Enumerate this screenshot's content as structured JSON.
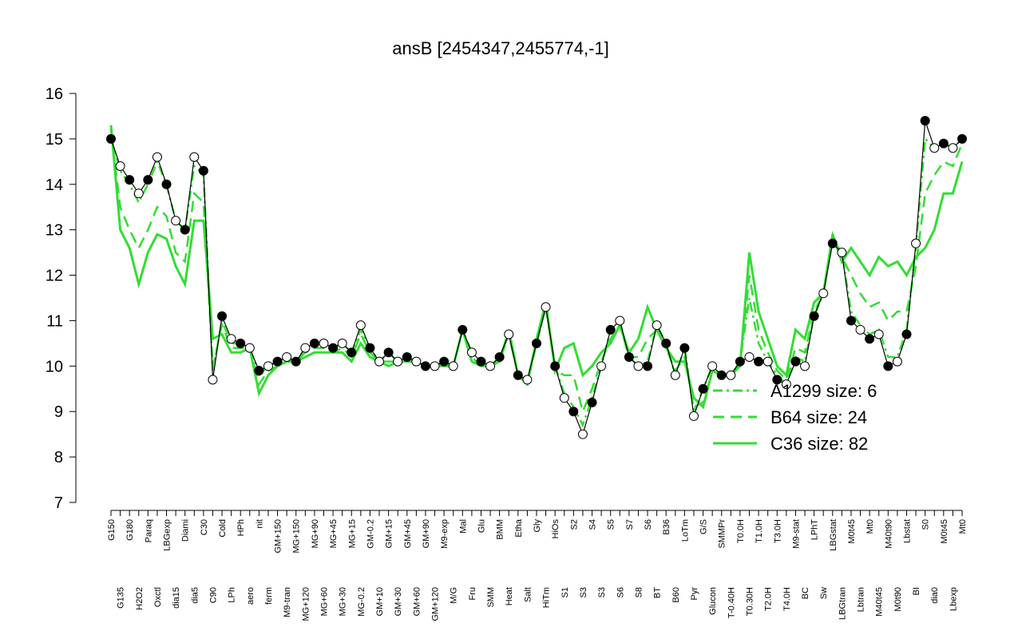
{
  "chart_data": {
    "type": "line",
    "title": "ansB [2454347,2455774,-1]",
    "categories": [
      "G150",
      "G135",
      "G180",
      "H2O2",
      "Paraq",
      "Oxctl",
      "LBGexp",
      "dia15",
      "Diami",
      "dia5",
      "C30",
      "C90",
      "Cold",
      "LPh",
      "HPh",
      "aero",
      "nit",
      "ferm",
      "GM+150",
      "M9-tran",
      "MG+150",
      "MG+120",
      "MG+90",
      "MG+60",
      "MG+45",
      "MG+30",
      "MG+15",
      "MG-0.2",
      "GM-0.2",
      "GM+10",
      "GM+15",
      "GM+30",
      "GM+45",
      "GM+60",
      "GM+90",
      "GM+120",
      "M9-exp",
      "M/G",
      "Mal",
      "Fru",
      "Glu",
      "SMM",
      "BMM",
      "Heat",
      "Etha",
      "Salt",
      "Gly",
      "HiTm",
      "HiOs",
      "S1",
      "S2",
      "S3",
      "S4",
      "S3",
      "S5",
      "S6",
      "S7",
      "S8",
      "S6",
      "BT",
      "B36",
      "B60",
      "LoTm",
      "Pyr",
      "G/S",
      "Glucon",
      "SMMPr",
      "T-0.40H",
      "T0.0H",
      "T0.30H",
      "T1.0H",
      "T2.0H",
      "T3.0H",
      "T4.0H",
      "M9-stat",
      "BC",
      "LPhT",
      "Sw",
      "LBGstat",
      "LBGtran",
      "M0t45",
      "Lbtran",
      "Mt0",
      "M40t45",
      "M40t90",
      "M0t90",
      "Lbstat",
      "BI",
      "S0",
      "dia0",
      "M0t45",
      "Lbexp",
      "Mt0"
    ],
    "values": [
      15.0,
      14.4,
      14.1,
      13.8,
      14.1,
      14.6,
      14.0,
      13.2,
      13.0,
      14.6,
      14.3,
      9.7,
      11.1,
      10.6,
      10.5,
      10.4,
      9.9,
      10.0,
      10.1,
      10.2,
      10.1,
      10.4,
      10.5,
      10.5,
      10.4,
      10.5,
      10.3,
      10.9,
      10.4,
      10.1,
      10.3,
      10.1,
      10.2,
      10.1,
      10.0,
      10.0,
      10.1,
      10.0,
      10.8,
      10.3,
      10.1,
      10.0,
      10.2,
      10.7,
      9.8,
      9.7,
      10.5,
      11.3,
      10.0,
      9.3,
      9.0,
      8.5,
      9.2,
      10.0,
      10.8,
      11.0,
      10.2,
      10.0,
      10.0,
      10.9,
      10.5,
      9.8,
      10.4,
      8.9,
      9.5,
      10.0,
      9.8,
      9.8,
      10.1,
      10.2,
      10.1,
      10.1,
      9.7,
      9.6,
      10.1,
      10.0,
      11.1,
      11.6,
      12.7,
      12.5,
      11.0,
      10.8,
      10.6,
      10.7,
      10.0,
      10.1,
      10.7,
      12.7,
      15.4,
      14.8,
      14.9,
      14.8,
      15.0
    ],
    "color": "#000000",
    "series": [
      {
        "name": "A1299 size: 6",
        "color": "#33dd33",
        "style": "dashdot",
        "values": [
          15.0,
          14.3,
          14.0,
          13.6,
          14.0,
          14.5,
          14.0,
          13.2,
          13.0,
          14.4,
          14.2,
          9.9,
          11.0,
          10.5,
          10.5,
          10.4,
          9.8,
          10.0,
          10.1,
          10.2,
          10.1,
          10.4,
          10.5,
          10.5,
          10.4,
          10.5,
          10.3,
          10.8,
          10.4,
          10.1,
          10.3,
          10.1,
          10.2,
          10.1,
          10.0,
          10.0,
          10.1,
          10.0,
          10.8,
          10.3,
          10.1,
          10.0,
          10.2,
          10.7,
          9.8,
          9.7,
          10.5,
          11.3,
          10.0,
          9.4,
          9.1,
          8.7,
          9.3,
          10.0,
          10.8,
          11.0,
          10.2,
          10.0,
          10.1,
          10.9,
          10.5,
          9.8,
          10.4,
          9.0,
          9.5,
          10.0,
          9.8,
          9.8,
          10.1,
          11.5,
          10.5,
          10.1,
          9.8,
          9.6,
          10.2,
          10.1,
          11.1,
          11.6,
          12.8,
          12.5,
          11.2,
          10.9,
          10.7,
          10.8,
          10.2,
          10.2,
          10.8,
          12.6,
          15.0,
          14.8,
          14.9,
          14.8,
          15.0
        ]
      },
      {
        "name": "B64 size: 24",
        "color": "#33dd33",
        "style": "dashed",
        "values": [
          15.2,
          13.5,
          13.0,
          12.6,
          13.0,
          13.5,
          13.3,
          12.5,
          12.3,
          13.8,
          13.6,
          10.0,
          10.9,
          10.4,
          10.4,
          10.4,
          9.6,
          9.9,
          10.0,
          10.1,
          10.1,
          10.3,
          10.4,
          10.4,
          10.3,
          10.4,
          10.2,
          10.7,
          10.3,
          10.1,
          10.1,
          10.1,
          10.1,
          10.1,
          10.0,
          10.0,
          10.0,
          10.0,
          10.8,
          10.2,
          10.0,
          10.0,
          10.1,
          10.7,
          9.8,
          9.6,
          10.5,
          11.3,
          9.9,
          9.8,
          9.8,
          9.0,
          9.5,
          10.1,
          10.6,
          10.9,
          10.2,
          10.2,
          10.6,
          10.8,
          10.4,
          9.9,
          10.2,
          9.1,
          9.2,
          9.9,
          9.8,
          9.8,
          10.0,
          12.0,
          10.8,
          10.3,
          9.9,
          9.7,
          10.4,
          10.3,
          11.2,
          11.6,
          12.9,
          12.4,
          12.0,
          11.6,
          11.3,
          11.4,
          11.0,
          11.2,
          11.2,
          12.2,
          13.8,
          14.2,
          14.5,
          14.4,
          14.9
        ]
      },
      {
        "name": "C36 size: 82",
        "color": "#33dd33",
        "style": "solid",
        "values": [
          15.3,
          13.0,
          12.6,
          11.8,
          12.5,
          12.9,
          12.8,
          12.2,
          11.8,
          13.2,
          13.2,
          10.6,
          10.7,
          10.3,
          10.3,
          10.4,
          9.4,
          9.8,
          10.0,
          10.1,
          10.1,
          10.2,
          10.3,
          10.3,
          10.3,
          10.3,
          10.1,
          10.5,
          10.2,
          10.1,
          10.0,
          10.1,
          10.1,
          10.1,
          10.0,
          10.0,
          10.0,
          10.0,
          10.8,
          10.1,
          10.0,
          10.0,
          10.1,
          10.8,
          9.8,
          9.6,
          10.6,
          11.4,
          9.9,
          10.4,
          10.5,
          9.8,
          10.0,
          10.3,
          10.5,
          10.9,
          10.3,
          10.6,
          11.3,
          10.8,
          10.4,
          10.1,
          10.1,
          9.3,
          9.1,
          9.9,
          9.8,
          9.8,
          10.0,
          12.5,
          11.2,
          10.6,
          10.0,
          9.8,
          10.8,
          10.6,
          11.4,
          11.6,
          12.9,
          12.3,
          12.6,
          12.3,
          12.0,
          12.4,
          12.2,
          12.3,
          12.0,
          12.4,
          12.6,
          13.0,
          13.8,
          13.8,
          14.5
        ]
      }
    ],
    "ylim": [
      7,
      16
    ],
    "yticks": [
      7,
      8,
      9,
      10,
      11,
      12,
      13,
      14,
      15,
      16
    ],
    "grid": false,
    "legend": "bottom-right"
  }
}
